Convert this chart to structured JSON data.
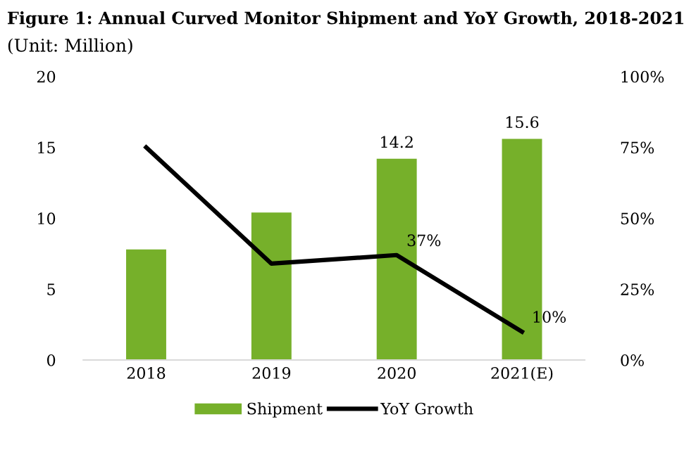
{
  "chart_data": {
    "type": "bar",
    "title": "Figure 1: Annual Curved Monitor Shipment and YoY Growth, 2018-2021",
    "subtitle": "(Unit: Million)",
    "categories": [
      "2018",
      "2019",
      "2020",
      "2021(E)"
    ],
    "series": [
      {
        "name": "Shipment",
        "color": "#76b02a",
        "values": [
          7.8,
          10.4,
          14.2,
          15.6
        ],
        "value_labels": [
          null,
          null,
          "14.2",
          "15.6"
        ]
      },
      {
        "name": "YoY Growth",
        "type": "line",
        "axis": "y2",
        "color": "#000000",
        "values": [
          75,
          34,
          37,
          10
        ],
        "value_labels": [
          null,
          null,
          "37%",
          "10%"
        ]
      }
    ],
    "ylim": [
      0,
      20
    ],
    "yticks": [
      0,
      5,
      10,
      15,
      20
    ],
    "y2lim": [
      0,
      100
    ],
    "y2ticks": [
      {
        "value": 0,
        "label": "0%"
      },
      {
        "value": 25,
        "label": "25%"
      },
      {
        "value": 50,
        "label": "50%"
      },
      {
        "value": 75,
        "label": "75%"
      },
      {
        "value": 100,
        "label": "100%"
      }
    ],
    "grid": false,
    "legend": "bottom",
    "marker": "none",
    "line_style": "solid"
  }
}
